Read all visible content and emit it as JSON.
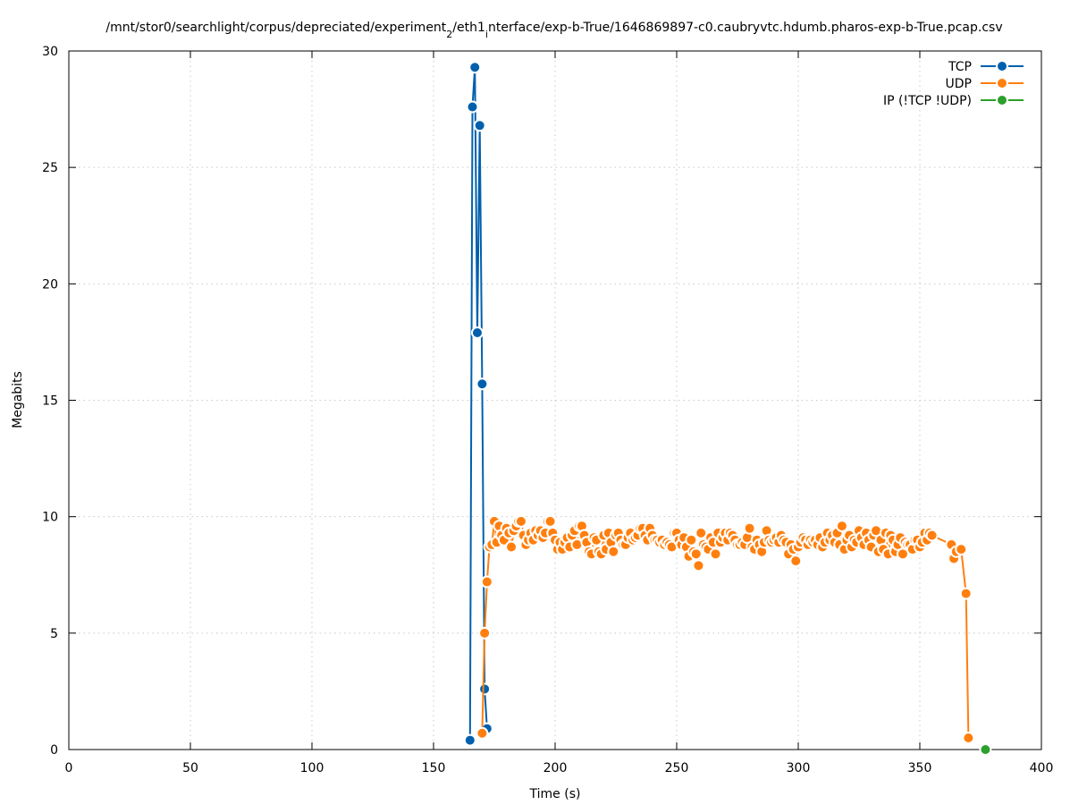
{
  "chart_data": {
    "type": "line",
    "title_parts": [
      "/mnt/stor0/searchlight/corpus/depreciated/experiment",
      "2",
      "/eth1",
      "i",
      "nterface/exp-b-True/1646869897-c0.caubryvtc.hdumb.pharos-exp-b-True.pcap.csv"
    ],
    "xlabel": "Time (s)",
    "ylabel": "Megabits",
    "xlim": [
      0,
      400
    ],
    "ylim": [
      0,
      30
    ],
    "xticks": [
      0,
      50,
      100,
      150,
      200,
      250,
      300,
      350,
      400
    ],
    "yticks": [
      0,
      5,
      10,
      15,
      20,
      25,
      30
    ],
    "grid": true,
    "legend_position": "top-right",
    "series": [
      {
        "name": "TCP",
        "color": "#0060ad",
        "points": [
          [
            165,
            0.4
          ],
          [
            166,
            27.6
          ],
          [
            167,
            29.3
          ],
          [
            168,
            17.9
          ],
          [
            169,
            26.8
          ],
          [
            170,
            15.7
          ],
          [
            171,
            2.6
          ],
          [
            172,
            0.9
          ]
        ]
      },
      {
        "name": "UDP",
        "color": "#ff7f0e",
        "points": [
          [
            170,
            0.7
          ],
          [
            171,
            5.0
          ],
          [
            172,
            7.2
          ],
          [
            173,
            8.7
          ],
          [
            174,
            8.8
          ],
          [
            175,
            9.8
          ],
          [
            176,
            8.9
          ],
          [
            177,
            9.6
          ],
          [
            178,
            9.2
          ],
          [
            179,
            9.0
          ],
          [
            180,
            9.5
          ],
          [
            181,
            9.3
          ],
          [
            182,
            8.7
          ],
          [
            183,
            9.4
          ],
          [
            184,
            9.6
          ],
          [
            185,
            9.8
          ],
          [
            186,
            9.8
          ],
          [
            187,
            9.2
          ],
          [
            188,
            8.8
          ],
          [
            189,
            9.0
          ],
          [
            190,
            9.3
          ],
          [
            191,
            9.0
          ],
          [
            192,
            9.4
          ],
          [
            193,
            9.2
          ],
          [
            194,
            9.4
          ],
          [
            195,
            9.1
          ],
          [
            196,
            9.3
          ],
          [
            197,
            9.8
          ],
          [
            198,
            9.8
          ],
          [
            199,
            9.3
          ],
          [
            200,
            9.0
          ],
          [
            201,
            8.6
          ],
          [
            202,
            8.9
          ],
          [
            203,
            8.6
          ],
          [
            204,
            8.9
          ],
          [
            205,
            9.1
          ],
          [
            206,
            8.7
          ],
          [
            207,
            9.2
          ],
          [
            208,
            9.4
          ],
          [
            209,
            8.8
          ],
          [
            210,
            9.6
          ],
          [
            211,
            9.6
          ],
          [
            212,
            9.2
          ],
          [
            213,
            8.9
          ],
          [
            214,
            8.5
          ],
          [
            215,
            8.4
          ],
          [
            216,
            9.1
          ],
          [
            217,
            9.0
          ],
          [
            218,
            8.5
          ],
          [
            219,
            8.4
          ],
          [
            220,
            9.2
          ],
          [
            221,
            8.6
          ],
          [
            222,
            9.3
          ],
          [
            223,
            8.9
          ],
          [
            224,
            8.5
          ],
          [
            225,
            9.2
          ],
          [
            226,
            9.3
          ],
          [
            227,
            9.0
          ],
          [
            228,
            8.8
          ],
          [
            229,
            8.8
          ],
          [
            230,
            9.1
          ],
          [
            231,
            9.3
          ],
          [
            232,
            9.0
          ],
          [
            233,
            9.1
          ],
          [
            234,
            9.2
          ],
          [
            235,
            9.5
          ],
          [
            236,
            9.5
          ],
          [
            237,
            9.2
          ],
          [
            238,
            9.0
          ],
          [
            239,
            9.5
          ],
          [
            240,
            9.2
          ],
          [
            241,
            9.0
          ],
          [
            242,
            9.0
          ],
          [
            243,
            8.9
          ],
          [
            244,
            9.0
          ],
          [
            245,
            8.8
          ],
          [
            246,
            8.9
          ],
          [
            247,
            8.8
          ],
          [
            248,
            8.7
          ],
          [
            249,
            9.3
          ],
          [
            250,
            9.3
          ],
          [
            251,
            9.0
          ],
          [
            252,
            8.8
          ],
          [
            253,
            9.1
          ],
          [
            254,
            8.7
          ],
          [
            255,
            8.3
          ],
          [
            256,
            9.0
          ],
          [
            257,
            8.5
          ],
          [
            258,
            8.4
          ],
          [
            259,
            7.9
          ],
          [
            260,
            9.3
          ],
          [
            261,
            8.8
          ],
          [
            262,
            8.7
          ],
          [
            263,
            8.6
          ],
          [
            264,
            9.1
          ],
          [
            265,
            8.9
          ],
          [
            266,
            8.4
          ],
          [
            267,
            9.3
          ],
          [
            268,
            8.9
          ],
          [
            269,
            9.1
          ],
          [
            270,
            9.3
          ],
          [
            271,
            9.0
          ],
          [
            272,
            9.3
          ],
          [
            273,
            9.2
          ],
          [
            274,
            9.0
          ],
          [
            275,
            8.8
          ],
          [
            276,
            8.8
          ],
          [
            277,
            8.9
          ],
          [
            278,
            8.8
          ],
          [
            279,
            9.1
          ],
          [
            280,
            9.5
          ],
          [
            281,
            8.7
          ],
          [
            282,
            8.6
          ],
          [
            283,
            9.0
          ],
          [
            284,
            8.8
          ],
          [
            285,
            8.5
          ],
          [
            286,
            8.9
          ],
          [
            287,
            9.4
          ],
          [
            288,
            9.0
          ],
          [
            289,
            8.9
          ],
          [
            290,
            9.0
          ],
          [
            291,
            9.1
          ],
          [
            292,
            8.9
          ],
          [
            293,
            9.2
          ],
          [
            294,
            9.0
          ],
          [
            295,
            8.9
          ],
          [
            296,
            8.4
          ],
          [
            297,
            8.8
          ],
          [
            298,
            8.6
          ],
          [
            299,
            8.1
          ],
          [
            300,
            8.7
          ],
          [
            301,
            8.9
          ],
          [
            302,
            9.1
          ],
          [
            303,
            9.0
          ],
          [
            304,
            8.8
          ],
          [
            305,
            9.0
          ],
          [
            306,
            8.9
          ],
          [
            307,
            9.0
          ],
          [
            308,
            8.8
          ],
          [
            309,
            9.1
          ],
          [
            310,
            8.7
          ],
          [
            311,
            8.9
          ],
          [
            312,
            9.3
          ],
          [
            313,
            9.0
          ],
          [
            314,
            9.2
          ],
          [
            315,
            8.9
          ],
          [
            316,
            9.3
          ],
          [
            317,
            8.8
          ],
          [
            318,
            9.6
          ],
          [
            319,
            8.6
          ],
          [
            320,
            9.0
          ],
          [
            321,
            9.2
          ],
          [
            322,
            8.7
          ],
          [
            323,
            9.0
          ],
          [
            324,
            8.9
          ],
          [
            325,
            9.4
          ],
          [
            326,
            9.1
          ],
          [
            327,
            8.8
          ],
          [
            328,
            9.3
          ],
          [
            329,
            9.0
          ],
          [
            330,
            8.7
          ],
          [
            331,
            9.2
          ],
          [
            332,
            9.4
          ],
          [
            333,
            8.5
          ],
          [
            334,
            9.0
          ],
          [
            335,
            8.6
          ],
          [
            336,
            9.3
          ],
          [
            337,
            8.4
          ],
          [
            338,
            9.2
          ],
          [
            339,
            9.0
          ],
          [
            340,
            8.5
          ],
          [
            341,
            8.8
          ],
          [
            342,
            9.1
          ],
          [
            343,
            8.4
          ],
          [
            344,
            8.9
          ],
          [
            345,
            8.8
          ],
          [
            346,
            8.8
          ],
          [
            347,
            8.6
          ],
          [
            348,
            9.0
          ],
          [
            349,
            9.0
          ],
          [
            350,
            8.7
          ],
          [
            351,
            8.9
          ],
          [
            352,
            9.3
          ],
          [
            353,
            9.0
          ],
          [
            354,
            9.3
          ],
          [
            355,
            9.2
          ],
          [
            363,
            8.8
          ],
          [
            364,
            8.2
          ],
          [
            365,
            8.5
          ],
          [
            367,
            8.6
          ],
          [
            369,
            6.7
          ],
          [
            370,
            0.5
          ]
        ]
      },
      {
        "name": "IP (!TCP  !UDP)",
        "color": "#2ca02c",
        "points": [
          [
            377,
            0.0
          ]
        ]
      }
    ]
  }
}
